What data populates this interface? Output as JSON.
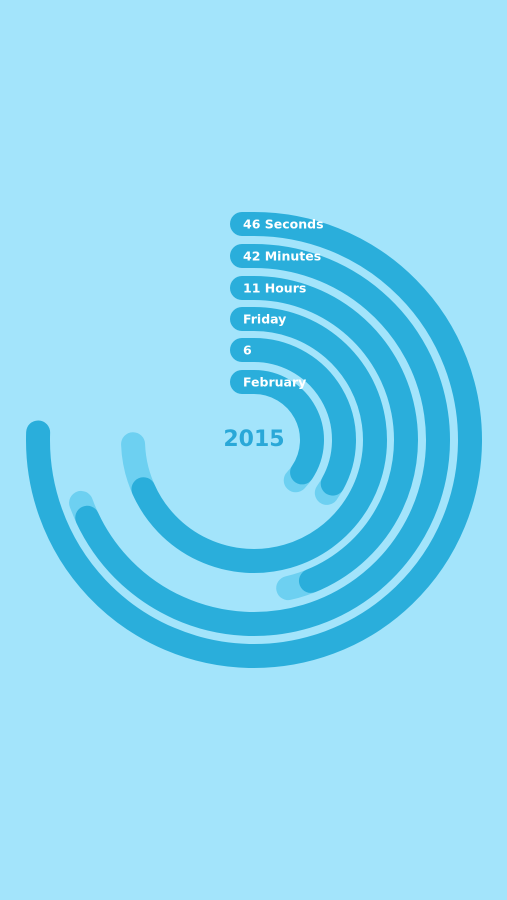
{
  "rings": [
    {
      "label": "46 Seconds"
    },
    {
      "label": "42 Minutes"
    },
    {
      "label": "11 Hours"
    },
    {
      "label": "Friday"
    },
    {
      "label": "6"
    },
    {
      "label": "February"
    }
  ],
  "year": "2015"
}
